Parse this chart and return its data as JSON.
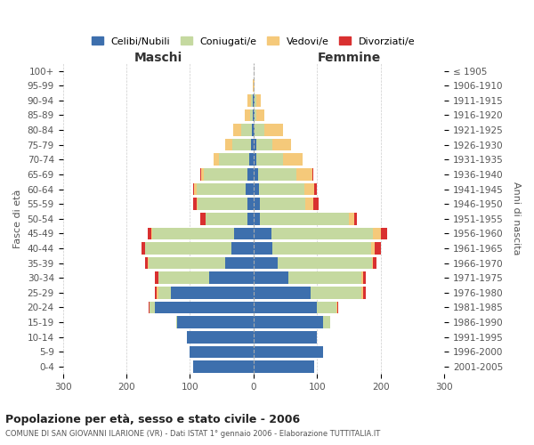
{
  "age_groups_bottom_to_top": [
    "0-4",
    "5-9",
    "10-14",
    "15-19",
    "20-24",
    "25-29",
    "30-34",
    "35-39",
    "40-44",
    "45-49",
    "50-54",
    "55-59",
    "60-64",
    "65-69",
    "70-74",
    "75-79",
    "80-84",
    "85-89",
    "90-94",
    "95-99",
    "100+"
  ],
  "birth_years_bottom_to_top": [
    "2001-2005",
    "1996-2000",
    "1991-1995",
    "1986-1990",
    "1981-1985",
    "1976-1980",
    "1971-1975",
    "1966-1970",
    "1961-1965",
    "1956-1960",
    "1951-1955",
    "1946-1950",
    "1941-1945",
    "1936-1940",
    "1931-1935",
    "1926-1930",
    "1921-1925",
    "1916-1920",
    "1911-1915",
    "1906-1910",
    "≤ 1905"
  ],
  "maschi": {
    "celibi": [
      95,
      100,
      105,
      120,
      155,
      130,
      70,
      45,
      35,
      30,
      10,
      10,
      12,
      10,
      7,
      4,
      2,
      1,
      1,
      0,
      0
    ],
    "coniugati": [
      0,
      0,
      0,
      2,
      8,
      20,
      80,
      120,
      135,
      130,
      65,
      78,
      78,
      68,
      48,
      30,
      18,
      5,
      3,
      0,
      0
    ],
    "vedovi": [
      0,
      0,
      0,
      0,
      1,
      2,
      0,
      1,
      1,
      1,
      1,
      2,
      3,
      5,
      8,
      10,
      12,
      8,
      5,
      1,
      0
    ],
    "divorziati": [
      0,
      0,
      0,
      0,
      1,
      3,
      5,
      4,
      5,
      5,
      8,
      5,
      2,
      1,
      0,
      0,
      0,
      0,
      0,
      0,
      0
    ]
  },
  "femmine": {
    "nubili": [
      95,
      110,
      100,
      110,
      100,
      90,
      55,
      38,
      30,
      28,
      10,
      10,
      8,
      7,
      5,
      4,
      2,
      1,
      1,
      0,
      0
    ],
    "coniugate": [
      0,
      0,
      0,
      10,
      30,
      80,
      115,
      148,
      155,
      160,
      140,
      72,
      72,
      60,
      42,
      25,
      15,
      4,
      3,
      0,
      0
    ],
    "vedove": [
      0,
      0,
      0,
      0,
      2,
      3,
      2,
      2,
      5,
      12,
      8,
      12,
      15,
      25,
      30,
      30,
      30,
      12,
      8,
      2,
      0
    ],
    "divorziate": [
      0,
      0,
      0,
      0,
      1,
      3,
      5,
      5,
      10,
      10,
      5,
      8,
      5,
      2,
      0,
      0,
      0,
      0,
      0,
      0,
      0
    ]
  },
  "colors": {
    "celibi": "#3d6fad",
    "coniugati": "#c5d9a0",
    "vedovi": "#f5c97a",
    "divorziati": "#d93030"
  },
  "title": "Popolazione per età, sesso e stato civile - 2006",
  "subtitle": "COMUNE DI SAN GIOVANNI ILARIONE (VR) - Dati ISTAT 1° gennaio 2006 - Elaborazione TUTTITALIA.IT",
  "label_maschi": "Maschi",
  "label_femmine": "Femmine",
  "ylabel_left": "Fasce di età",
  "ylabel_right": "Anni di nascita",
  "xlim": 300,
  "legend_labels": [
    "Celibi/Nubili",
    "Coniugati/e",
    "Vedovi/e",
    "Divorziati/e"
  ],
  "background_color": "#ffffff",
  "grid_color": "#cccccc"
}
